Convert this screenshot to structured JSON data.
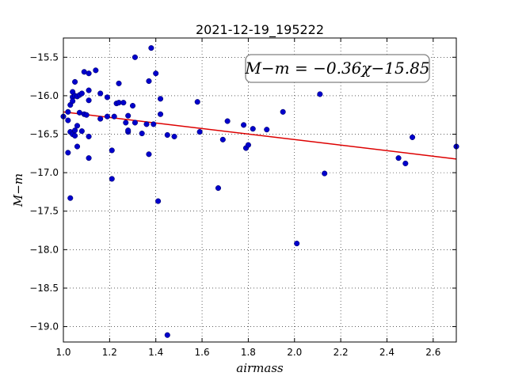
{
  "chart_data": {
    "type": "scatter",
    "title": "2021-12-19_195222",
    "xlabel": "airmass",
    "ylabel": "M−m",
    "xlim": [
      1.0,
      2.7
    ],
    "ylim": [
      -19.2,
      -15.25
    ],
    "y_inverted": true,
    "grid": true,
    "grid_style": "dotted",
    "x_ticks": [
      1.0,
      1.2,
      1.4,
      1.6,
      1.8,
      2.0,
      2.2,
      2.4,
      2.6
    ],
    "x_tick_labels": [
      "1.0",
      "1.2",
      "1.4",
      "1.6",
      "1.8",
      "2.0",
      "2.2",
      "2.4",
      "2.6"
    ],
    "y_ticks": [
      -15.5,
      -16.0,
      -16.5,
      -17.0,
      -17.5,
      -18.0,
      -18.5,
      -19.0
    ],
    "y_tick_labels": [
      "−15.5",
      "−16.0",
      "−16.5",
      "−17.0",
      "−17.5",
      "−18.0",
      "−18.5",
      "−19.0"
    ],
    "annotation": "M−m = −0.36χ−15.85",
    "annotation_position": "top-right",
    "point_color": "#0000cc",
    "fit_color": "#dd0000",
    "fit": {
      "slope": -0.36,
      "intercept": -15.85
    },
    "points": [
      [
        1.0,
        -16.27
      ],
      [
        1.02,
        -16.21
      ],
      [
        1.02,
        -16.32
      ],
      [
        1.02,
        -16.74
      ],
      [
        1.03,
        -17.33
      ],
      [
        1.03,
        -16.12
      ],
      [
        1.03,
        -16.47
      ],
      [
        1.04,
        -16.02
      ],
      [
        1.04,
        -16.07
      ],
      [
        1.04,
        -15.95
      ],
      [
        1.04,
        -16.5
      ],
      [
        1.05,
        -16.0
      ],
      [
        1.05,
        -15.82
      ],
      [
        1.05,
        -16.52
      ],
      [
        1.05,
        -16.45
      ],
      [
        1.06,
        -16.39
      ],
      [
        1.06,
        -16.66
      ],
      [
        1.06,
        -16.01
      ],
      [
        1.07,
        -16.22
      ],
      [
        1.07,
        -15.99
      ],
      [
        1.08,
        -15.97
      ],
      [
        1.08,
        -16.46
      ],
      [
        1.09,
        -16.24
      ],
      [
        1.09,
        -15.69
      ],
      [
        1.1,
        -16.25
      ],
      [
        1.11,
        -15.71
      ],
      [
        1.11,
        -16.06
      ],
      [
        1.11,
        -15.93
      ],
      [
        1.11,
        -16.53
      ],
      [
        1.11,
        -16.81
      ],
      [
        1.14,
        -15.67
      ],
      [
        1.16,
        -15.97
      ],
      [
        1.16,
        -16.3
      ],
      [
        1.19,
        -16.02
      ],
      [
        1.19,
        -16.27
      ],
      [
        1.21,
        -16.71
      ],
      [
        1.21,
        -17.08
      ],
      [
        1.22,
        -16.27
      ],
      [
        1.23,
        -16.1
      ],
      [
        1.24,
        -16.09
      ],
      [
        1.24,
        -15.84
      ],
      [
        1.26,
        -16.09
      ],
      [
        1.27,
        -16.35
      ],
      [
        1.28,
        -16.26
      ],
      [
        1.28,
        -16.47
      ],
      [
        1.28,
        -16.45
      ],
      [
        1.3,
        -16.13
      ],
      [
        1.31,
        -15.5
      ],
      [
        1.31,
        -16.35
      ],
      [
        1.34,
        -16.49
      ],
      [
        1.36,
        -16.37
      ],
      [
        1.37,
        -15.81
      ],
      [
        1.37,
        -16.76
      ],
      [
        1.38,
        -15.38
      ],
      [
        1.39,
        -16.37
      ],
      [
        1.4,
        -15.71
      ],
      [
        1.41,
        -17.37
      ],
      [
        1.42,
        -16.04
      ],
      [
        1.42,
        -16.24
      ],
      [
        1.45,
        -16.51
      ],
      [
        1.45,
        -19.11
      ],
      [
        1.48,
        -16.53
      ],
      [
        1.58,
        -16.08
      ],
      [
        1.59,
        -16.47
      ],
      [
        1.67,
        -17.2
      ],
      [
        1.69,
        -16.57
      ],
      [
        1.71,
        -16.33
      ],
      [
        1.78,
        -16.38
      ],
      [
        1.79,
        -16.68
      ],
      [
        1.8,
        -16.64
      ],
      [
        1.82,
        -16.43
      ],
      [
        1.88,
        -16.44
      ],
      [
        1.95,
        -16.21
      ],
      [
        2.01,
        -17.92
      ],
      [
        2.11,
        -15.98
      ],
      [
        2.13,
        -17.01
      ],
      [
        2.45,
        -16.81
      ],
      [
        2.48,
        -16.88
      ],
      [
        2.51,
        -16.54
      ],
      [
        2.7,
        -16.66
      ]
    ]
  }
}
